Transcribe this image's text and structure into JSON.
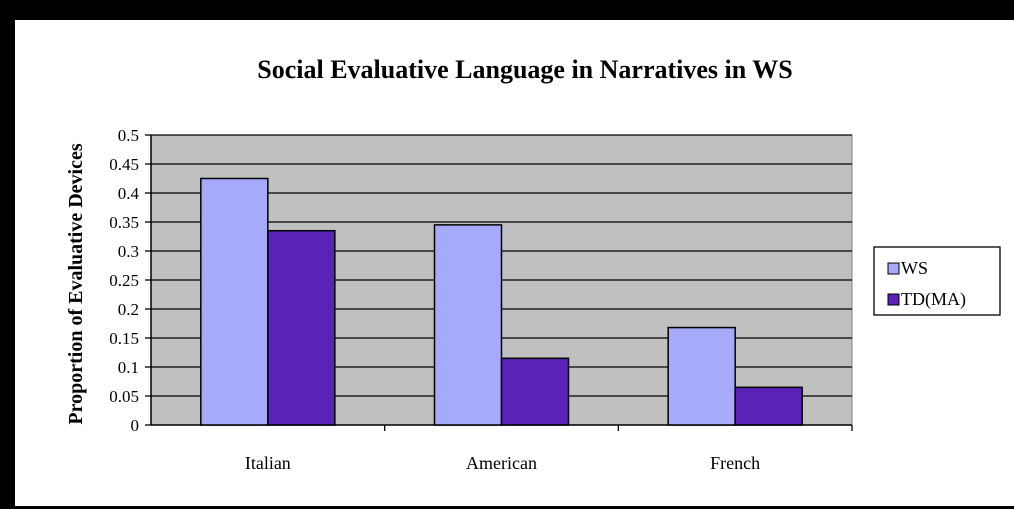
{
  "chart_data": {
    "type": "bar",
    "title": "Social Evaluative Language in Narratives in WS",
    "xlabel": "",
    "ylabel": "Proportion of Evaluative Devices",
    "categories": [
      "Italian",
      "American",
      "French"
    ],
    "series": [
      {
        "name": "WS",
        "values": [
          0.425,
          0.345,
          0.168
        ],
        "color": "#a7a9fb"
      },
      {
        "name": "TD(MA)",
        "values": [
          0.335,
          0.115,
          0.065
        ],
        "color": "#5a22b8"
      }
    ],
    "ylim": [
      0,
      0.5
    ],
    "yticks": [
      0,
      0.05,
      0.1,
      0.15,
      0.2,
      0.25,
      0.3,
      0.35,
      0.4,
      0.45,
      0.5
    ],
    "ytick_labels": [
      "0",
      "0.05",
      "0.1",
      "0.15",
      "0.2",
      "0.25",
      "0.3",
      "0.35",
      "0.4",
      "0.45",
      "0.5"
    ],
    "grid": true,
    "plot_background": "#c0c0c0",
    "legend_position": "right"
  }
}
